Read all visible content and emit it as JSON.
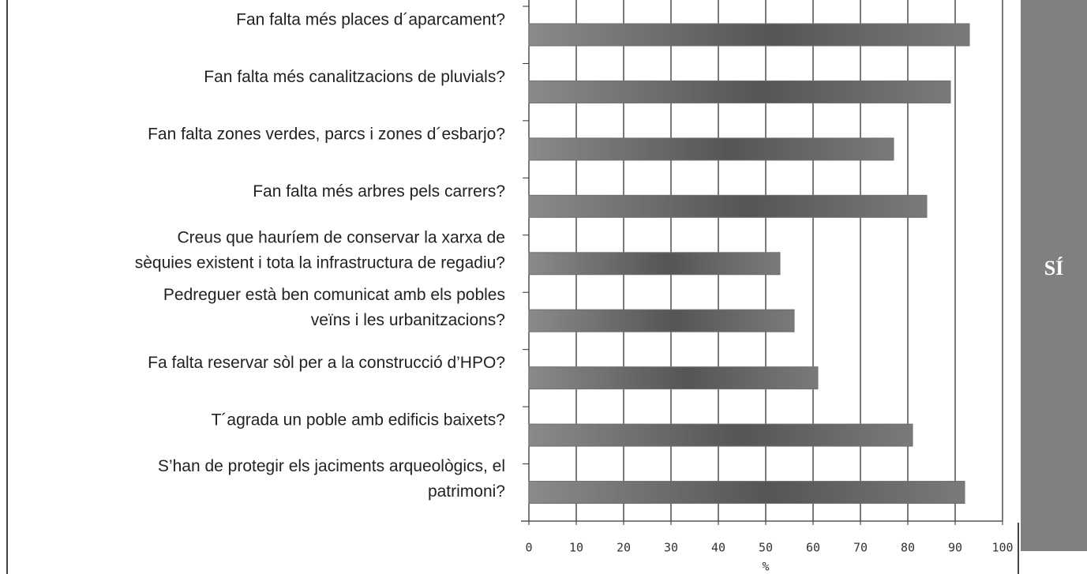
{
  "chart_data": {
    "type": "bar",
    "orientation": "horizontal",
    "categories": [
      [
        "Fan falta més places d´aparcament?"
      ],
      [
        "Fan falta més canalitzacions de pluvials?"
      ],
      [
        "Fan falta zones verdes, parcs i zones d´esbarjo?"
      ],
      [
        "Fan falta més arbres pels carrers?"
      ],
      [
        "Creus que hauríem de conservar la xarxa de",
        "sèquies existent i tota la infrastructura de regadiu?"
      ],
      [
        "Pedreguer està ben comunicat amb els pobles",
        "veïns i les urbanitzacions?"
      ],
      [
        "Fa falta reservar sòl per a la construcció d’HPO?"
      ],
      [
        "T´agrada un poble amb edificis baixets?"
      ],
      [
        "S’han de protegir els jaciments arqueològics, el",
        "patrimoni?"
      ]
    ],
    "values": [
      93,
      89,
      77,
      84,
      53,
      56,
      61,
      81,
      92
    ],
    "color": "#6e6e6e",
    "xlim": [
      0,
      100
    ],
    "xticks": [
      0,
      10,
      20,
      30,
      40,
      50,
      60,
      70,
      80,
      90,
      100
    ],
    "xlabel": "%",
    "grid": true,
    "panel_label": "SÍ"
  }
}
